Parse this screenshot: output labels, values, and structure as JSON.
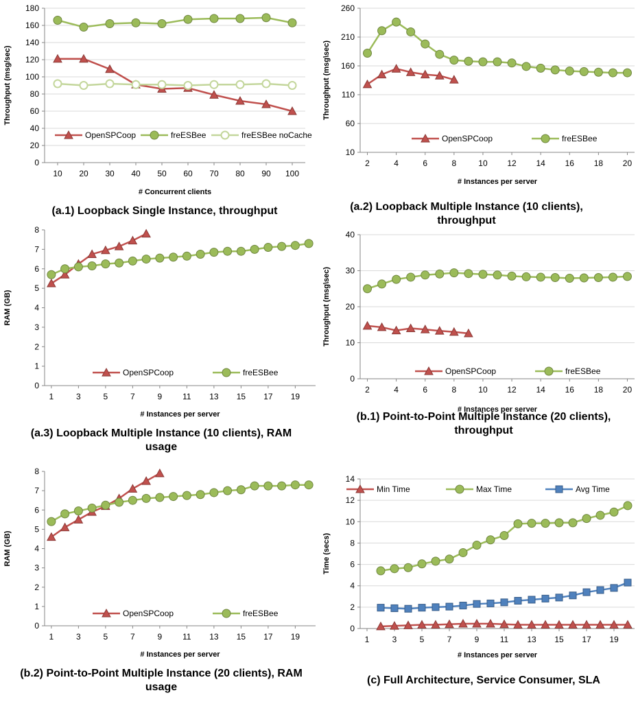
{
  "chart_data": [
    {
      "id": "a1",
      "type": "line",
      "caption": "(a.1) Loopback Single Instance, throughput",
      "xlabel": "# Concurrent clients",
      "ylabel": "Throughput (msg/sec)",
      "x_tick_labels": [
        "10",
        "20",
        "30",
        "40",
        "50",
        "60",
        "70",
        "80",
        "90",
        "100"
      ],
      "x_positions": [
        10,
        20,
        30,
        40,
        50,
        60,
        70,
        80,
        90,
        100
      ],
      "xlim": [
        5,
        105
      ],
      "ylim": [
        0,
        180
      ],
      "y_ticks": [
        0,
        20,
        40,
        60,
        80,
        100,
        120,
        140,
        160,
        180
      ],
      "grid": "horizontal",
      "legend_position": "bottom",
      "series": [
        {
          "name": "OpenSPCoop",
          "marker": "triangle",
          "color": "#C0504D",
          "x": [
            10,
            20,
            30,
            40,
            50,
            60,
            70,
            80,
            90,
            100
          ],
          "y": [
            121,
            121,
            109,
            91,
            86,
            87,
            79,
            72,
            68,
            60
          ]
        },
        {
          "name": "freESBee",
          "marker": "circle",
          "color": "#9BBB59",
          "x": [
            10,
            20,
            30,
            40,
            50,
            60,
            70,
            80,
            90,
            100
          ],
          "y": [
            166,
            158,
            162,
            163,
            162,
            167,
            168,
            168,
            169,
            163
          ]
        },
        {
          "name": "freESBee noCache",
          "marker": "circle-open",
          "color": "#C3D69B",
          "x": [
            10,
            20,
            30,
            40,
            50,
            60,
            70,
            80,
            90,
            100
          ],
          "y": [
            92,
            90,
            92,
            91,
            91,
            90,
            91,
            91,
            92,
            90
          ]
        }
      ]
    },
    {
      "id": "a2",
      "type": "line",
      "caption": "(a.2) Loopback Multiple Instance (10 clients), throughput",
      "xlabel": "# Instances per server",
      "ylabel": "Throughput (msg\\sec)",
      "x_tick_labels": [
        "2",
        "4",
        "6",
        "8",
        "10",
        "12",
        "14",
        "16",
        "18",
        "20"
      ],
      "x_positions": [
        2,
        4,
        6,
        8,
        10,
        12,
        14,
        16,
        18,
        20
      ],
      "xlim": [
        1.5,
        20.5
      ],
      "ylim": [
        10,
        260
      ],
      "y_ticks": [
        10,
        60,
        110,
        160,
        210,
        260
      ],
      "grid": "horizontal",
      "legend_position": "bottom",
      "series": [
        {
          "name": "OpenSPCoop",
          "marker": "triangle",
          "color": "#C0504D",
          "x": [
            2,
            3,
            4,
            5,
            6,
            7,
            8
          ],
          "y": [
            128,
            145,
            155,
            149,
            145,
            143,
            136
          ]
        },
        {
          "name": "freESBee",
          "marker": "circle",
          "color": "#9BBB59",
          "x": [
            2,
            3,
            4,
            5,
            6,
            7,
            8,
            9,
            10,
            11,
            12,
            13,
            14,
            15,
            16,
            17,
            18,
            19,
            20
          ],
          "y": [
            182,
            221,
            236,
            219,
            198,
            180,
            170,
            168,
            167,
            167,
            165,
            159,
            156,
            153,
            151,
            150,
            149,
            148,
            148
          ]
        }
      ]
    },
    {
      "id": "a3",
      "type": "line",
      "caption": "(a.3) Loopback Multiple Instance (10 clients), RAM usage",
      "xlabel": "# Instances per server",
      "ylabel": "RAM (GB)",
      "x_tick_labels": [
        "1",
        "3",
        "5",
        "7",
        "9",
        "11",
        "13",
        "15",
        "17",
        "19"
      ],
      "x_positions": [
        1,
        3,
        5,
        7,
        9,
        11,
        13,
        15,
        17,
        19
      ],
      "xlim": [
        0.5,
        20.5
      ],
      "ylim": [
        0,
        8
      ],
      "y_ticks": [
        0,
        1,
        2,
        3,
        4,
        5,
        6,
        7,
        8
      ],
      "grid": "none",
      "legend_position": "bottom",
      "series": [
        {
          "name": "OpenSPCoop",
          "marker": "triangle",
          "color": "#C0504D",
          "x": [
            1,
            2,
            3,
            4,
            5,
            6,
            7,
            8
          ],
          "y": [
            5.25,
            5.7,
            6.25,
            6.75,
            6.95,
            7.15,
            7.45,
            7.8
          ]
        },
        {
          "name": "freESBee",
          "marker": "circle",
          "color": "#9BBB59",
          "x": [
            1,
            2,
            3,
            4,
            5,
            6,
            7,
            8,
            9,
            10,
            11,
            12,
            13,
            14,
            15,
            16,
            17,
            18,
            19,
            20
          ],
          "y": [
            5.7,
            6.0,
            6.1,
            6.15,
            6.25,
            6.3,
            6.4,
            6.5,
            6.55,
            6.6,
            6.65,
            6.75,
            6.85,
            6.9,
            6.9,
            7.0,
            7.1,
            7.15,
            7.2,
            7.3
          ]
        }
      ]
    },
    {
      "id": "b1",
      "type": "line",
      "caption": "(b.1) Point-to-Point Multiple Instance (20 clients), throughput",
      "xlabel": "# Instances per server",
      "ylabel": "Throughput (msg\\sec)",
      "x_tick_labels": [
        "2",
        "4",
        "6",
        "8",
        "10",
        "12",
        "14",
        "16",
        "18",
        "20"
      ],
      "x_positions": [
        2,
        4,
        6,
        8,
        10,
        12,
        14,
        16,
        18,
        20
      ],
      "xlim": [
        1.5,
        20.5
      ],
      "ylim": [
        0,
        40
      ],
      "y_ticks": [
        0,
        10,
        20,
        30,
        40
      ],
      "grid": "horizontal",
      "legend_position": "bottom",
      "series": [
        {
          "name": "OpenSPCoop",
          "marker": "triangle",
          "color": "#C0504D",
          "x": [
            2,
            3,
            4,
            5,
            6,
            7,
            8,
            9
          ],
          "y": [
            14.7,
            14.3,
            13.4,
            14.0,
            13.7,
            13.3,
            13.0,
            12.6
          ]
        },
        {
          "name": "freESBee",
          "marker": "circle",
          "color": "#9BBB59",
          "x": [
            2,
            3,
            4,
            5,
            6,
            7,
            8,
            9,
            10,
            11,
            12,
            13,
            14,
            15,
            16,
            17,
            18,
            19,
            20
          ],
          "y": [
            25,
            26.3,
            27.6,
            28.2,
            28.8,
            29.1,
            29.4,
            29.2,
            29.0,
            28.8,
            28.5,
            28.3,
            28.2,
            28.1,
            27.9,
            28.0,
            28.1,
            28.2,
            28.4
          ]
        }
      ]
    },
    {
      "id": "b2",
      "type": "line",
      "caption": "(b.2) Point-to-Point Multiple Instance (20 clients), RAM usage",
      "xlabel": "# Instances per server",
      "ylabel": "RAM (GB)",
      "x_tick_labels": [
        "1",
        "3",
        "5",
        "7",
        "9",
        "11",
        "13",
        "15",
        "17",
        "19"
      ],
      "x_positions": [
        1,
        3,
        5,
        7,
        9,
        11,
        13,
        15,
        17,
        19
      ],
      "xlim": [
        0.5,
        20.5
      ],
      "ylim": [
        0,
        8
      ],
      "y_ticks": [
        0,
        1,
        2,
        3,
        4,
        5,
        6,
        7,
        8
      ],
      "grid": "none",
      "legend_position": "bottom",
      "series": [
        {
          "name": "OpenSPCoop",
          "marker": "triangle",
          "color": "#C0504D",
          "x": [
            1,
            2,
            3,
            4,
            5,
            6,
            7,
            8,
            9
          ],
          "y": [
            4.6,
            5.1,
            5.5,
            5.9,
            6.2,
            6.6,
            7.1,
            7.5,
            7.9
          ]
        },
        {
          "name": "freESBee",
          "marker": "circle",
          "color": "#9BBB59",
          "x": [
            1,
            2,
            3,
            4,
            5,
            6,
            7,
            8,
            9,
            10,
            11,
            12,
            13,
            14,
            15,
            16,
            17,
            18,
            19,
            20
          ],
          "y": [
            5.4,
            5.8,
            5.95,
            6.1,
            6.25,
            6.4,
            6.5,
            6.6,
            6.65,
            6.7,
            6.75,
            6.8,
            6.9,
            7.0,
            7.05,
            7.25,
            7.25,
            7.25,
            7.3,
            7.3
          ]
        }
      ]
    },
    {
      "id": "c",
      "type": "line",
      "caption": "(c) Full Architecture, Service Consumer, SLA",
      "xlabel": "# Instances per server",
      "ylabel": "Time (secs)",
      "x_tick_labels": [
        "1",
        "3",
        "5",
        "7",
        "9",
        "11",
        "13",
        "15",
        "17",
        "19"
      ],
      "x_positions": [
        1,
        3,
        5,
        7,
        9,
        11,
        13,
        15,
        17,
        19
      ],
      "xlim": [
        0.5,
        20.5
      ],
      "ylim": [
        0,
        14
      ],
      "y_ticks": [
        0,
        2,
        4,
        6,
        8,
        10,
        12,
        14
      ],
      "grid": "horizontal",
      "legend_position": "top",
      "series": [
        {
          "name": "Min Time",
          "marker": "triangle",
          "color": "#C0504D",
          "x": [
            2,
            3,
            4,
            5,
            6,
            7,
            8,
            9,
            10,
            11,
            12,
            13,
            14,
            15,
            16,
            17,
            18,
            19,
            20
          ],
          "y": [
            0.2,
            0.25,
            0.3,
            0.35,
            0.35,
            0.4,
            0.45,
            0.45,
            0.45,
            0.4,
            0.35,
            0.35,
            0.35,
            0.35,
            0.35,
            0.35,
            0.35,
            0.35,
            0.35
          ]
        },
        {
          "name": "Max Time",
          "marker": "circle",
          "color": "#9BBB59",
          "x": [
            2,
            3,
            4,
            5,
            6,
            7,
            8,
            9,
            10,
            11,
            12,
            13,
            14,
            15,
            16,
            17,
            18,
            19,
            20
          ],
          "y": [
            5.4,
            5.6,
            5.7,
            6.05,
            6.3,
            6.5,
            7.1,
            7.8,
            8.3,
            8.7,
            9.8,
            9.85,
            9.85,
            9.9,
            9.9,
            10.3,
            10.6,
            10.9,
            11.5
          ]
        },
        {
          "name": "Avg Time",
          "marker": "square",
          "color": "#4F81BD",
          "x": [
            2,
            3,
            4,
            5,
            6,
            7,
            8,
            9,
            10,
            11,
            12,
            13,
            14,
            15,
            16,
            17,
            18,
            19,
            20
          ],
          "y": [
            1.95,
            1.9,
            1.85,
            1.95,
            2.0,
            2.05,
            2.15,
            2.3,
            2.35,
            2.45,
            2.6,
            2.7,
            2.8,
            2.9,
            3.1,
            3.4,
            3.6,
            3.8,
            4.3
          ]
        }
      ]
    }
  ]
}
